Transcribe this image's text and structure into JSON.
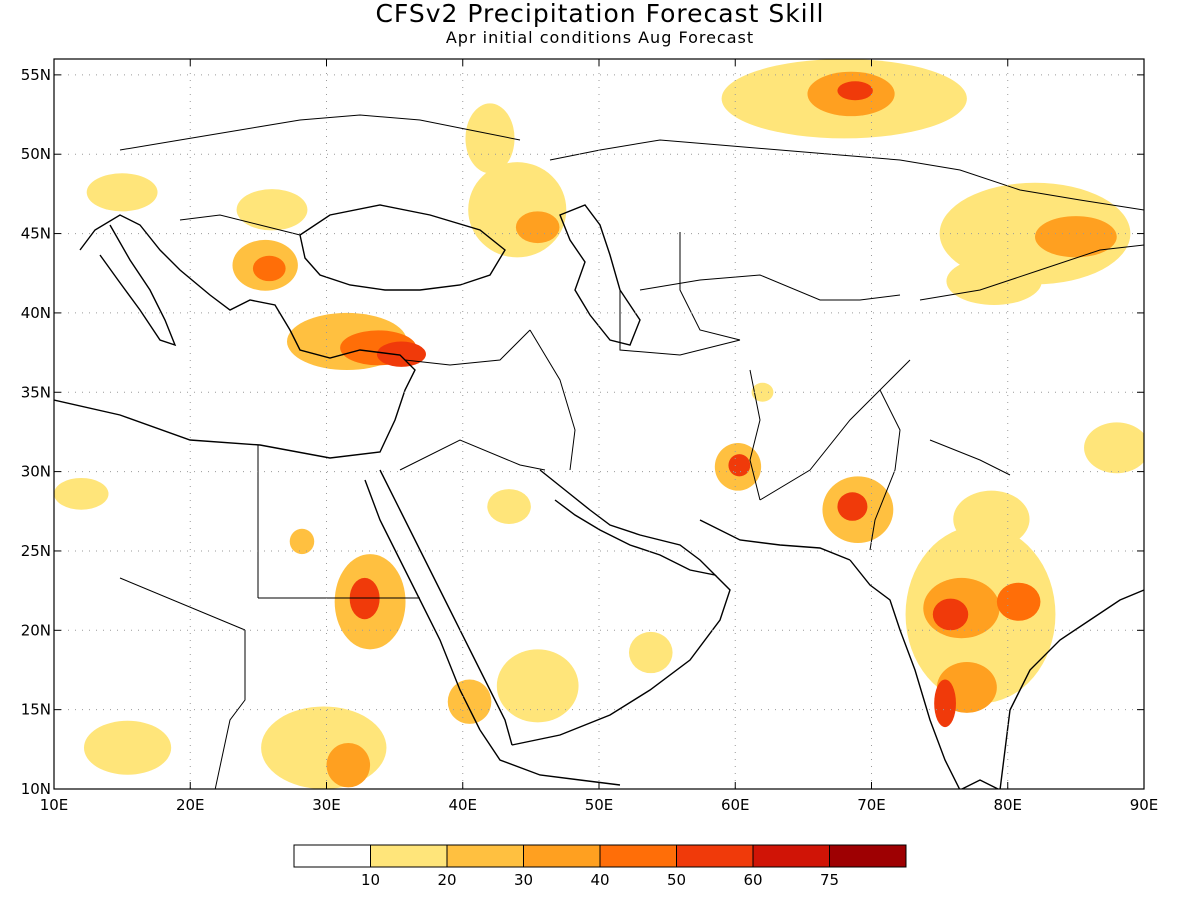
{
  "title": "CFSv2 Precipitation Forecast Skill",
  "subtitle": "Apr initial conditions   Aug Forecast",
  "map": {
    "lon_range": [
      10,
      90
    ],
    "lat_range": [
      10,
      56
    ],
    "lat_ticks": [
      {
        "value": 55,
        "label": "55N"
      },
      {
        "value": 50,
        "label": "50N"
      },
      {
        "value": 45,
        "label": "45N"
      },
      {
        "value": 40,
        "label": "40N"
      },
      {
        "value": 35,
        "label": "35N"
      },
      {
        "value": 30,
        "label": "30N"
      },
      {
        "value": 25,
        "label": "25N"
      },
      {
        "value": 20,
        "label": "20N"
      },
      {
        "value": 15,
        "label": "15N"
      },
      {
        "value": 10,
        "label": "10N"
      }
    ],
    "lon_ticks": [
      {
        "value": 10,
        "label": "10E"
      },
      {
        "value": 20,
        "label": "20E"
      },
      {
        "value": 30,
        "label": "30E"
      },
      {
        "value": 40,
        "label": "40E"
      },
      {
        "value": 50,
        "label": "50E"
      },
      {
        "value": 60,
        "label": "60E"
      },
      {
        "value": 70,
        "label": "70E"
      },
      {
        "value": 80,
        "label": "80E"
      },
      {
        "value": 90,
        "label": "90E"
      }
    ],
    "grid": "dotted",
    "skill_regions": [
      {
        "lon": 31.5,
        "lat": 38.2,
        "rx": 4.4,
        "ry": 1.8,
        "level": 2
      },
      {
        "lon": 33.8,
        "lat": 37.8,
        "rx": 2.8,
        "ry": 1.1,
        "level": 4
      },
      {
        "lon": 35.5,
        "lat": 37.4,
        "rx": 1.8,
        "ry": 0.8,
        "level": 5
      },
      {
        "lon": 25.5,
        "lat": 43.0,
        "rx": 2.4,
        "ry": 1.6,
        "level": 2
      },
      {
        "lon": 25.8,
        "lat": 42.8,
        "rx": 1.2,
        "ry": 0.8,
        "level": 4
      },
      {
        "lon": 15.0,
        "lat": 47.6,
        "rx": 2.6,
        "ry": 1.2,
        "level": 1
      },
      {
        "lon": 26.0,
        "lat": 46.5,
        "rx": 2.6,
        "ry": 1.3,
        "level": 1
      },
      {
        "lon": 44.0,
        "lat": 46.5,
        "rx": 3.6,
        "ry": 3.0,
        "level": 1
      },
      {
        "lon": 45.5,
        "lat": 45.4,
        "rx": 1.6,
        "ry": 1.0,
        "level": 3
      },
      {
        "lon": 42.0,
        "lat": 51.0,
        "rx": 1.8,
        "ry": 2.2,
        "level": 1
      },
      {
        "lon": 68.0,
        "lat": 53.5,
        "rx": 9.0,
        "ry": 2.5,
        "level": 1
      },
      {
        "lon": 68.5,
        "lat": 53.8,
        "rx": 3.2,
        "ry": 1.4,
        "level": 3
      },
      {
        "lon": 68.8,
        "lat": 54.0,
        "rx": 1.3,
        "ry": 0.6,
        "level": 5
      },
      {
        "lon": 82.0,
        "lat": 45.0,
        "rx": 7.0,
        "ry": 3.2,
        "level": 1
      },
      {
        "lon": 85.0,
        "lat": 44.8,
        "rx": 3.0,
        "ry": 1.3,
        "level": 3
      },
      {
        "lon": 79.0,
        "lat": 42.0,
        "rx": 3.5,
        "ry": 1.5,
        "level": 1
      },
      {
        "lon": 60.2,
        "lat": 30.3,
        "rx": 1.7,
        "ry": 1.5,
        "level": 2
      },
      {
        "lon": 60.3,
        "lat": 30.4,
        "rx": 0.8,
        "ry": 0.7,
        "level": 5
      },
      {
        "lon": 69.0,
        "lat": 27.6,
        "rx": 2.6,
        "ry": 2.1,
        "level": 2
      },
      {
        "lon": 68.6,
        "lat": 27.8,
        "rx": 1.1,
        "ry": 0.9,
        "level": 5
      },
      {
        "lon": 78.0,
        "lat": 21.0,
        "rx": 5.5,
        "ry": 5.6,
        "level": 1
      },
      {
        "lon": 76.6,
        "lat": 21.4,
        "rx": 2.8,
        "ry": 1.9,
        "level": 3
      },
      {
        "lon": 75.8,
        "lat": 21.0,
        "rx": 1.3,
        "ry": 1.0,
        "level": 5
      },
      {
        "lon": 80.8,
        "lat": 21.8,
        "rx": 1.6,
        "ry": 1.2,
        "level": 4
      },
      {
        "lon": 77.0,
        "lat": 16.4,
        "rx": 2.2,
        "ry": 1.6,
        "level": 3
      },
      {
        "lon": 75.4,
        "lat": 15.4,
        "rx": 0.8,
        "ry": 1.5,
        "level": 5
      },
      {
        "lon": 78.8,
        "lat": 27.0,
        "rx": 2.8,
        "ry": 1.8,
        "level": 1
      },
      {
        "lon": 33.2,
        "lat": 21.8,
        "rx": 2.6,
        "ry": 3.0,
        "level": 2
      },
      {
        "lon": 32.8,
        "lat": 22.0,
        "rx": 1.1,
        "ry": 1.3,
        "level": 5
      },
      {
        "lon": 29.8,
        "lat": 12.6,
        "rx": 4.6,
        "ry": 2.6,
        "level": 1
      },
      {
        "lon": 31.6,
        "lat": 11.5,
        "rx": 1.6,
        "ry": 1.4,
        "level": 3
      },
      {
        "lon": 15.4,
        "lat": 12.6,
        "rx": 3.2,
        "ry": 1.7,
        "level": 1
      },
      {
        "lon": 88.0,
        "lat": 31.5,
        "rx": 2.4,
        "ry": 1.6,
        "level": 1
      },
      {
        "lon": 12.0,
        "lat": 28.6,
        "rx": 2.0,
        "ry": 1.0,
        "level": 1
      },
      {
        "lon": 45.5,
        "lat": 16.5,
        "rx": 3.0,
        "ry": 2.3,
        "level": 1
      },
      {
        "lon": 40.5,
        "lat": 15.5,
        "rx": 1.6,
        "ry": 1.4,
        "level": 2
      },
      {
        "lon": 53.8,
        "lat": 18.6,
        "rx": 1.6,
        "ry": 1.3,
        "level": 1
      },
      {
        "lon": 28.2,
        "lat": 25.6,
        "rx": 0.9,
        "ry": 0.8,
        "level": 2
      },
      {
        "lon": 43.4,
        "lat": 27.8,
        "rx": 1.6,
        "ry": 1.1,
        "level": 1
      },
      {
        "lon": 62.0,
        "lat": 35.0,
        "rx": 0.8,
        "ry": 0.6,
        "level": 1
      }
    ]
  },
  "colorbar": {
    "colors": [
      "#ffffff",
      "#ffe57a",
      "#ffc040",
      "#ffa020",
      "#ff6e08",
      "#f03a0a",
      "#d01406",
      "#9e0002"
    ],
    "labels": [
      "10",
      "20",
      "30",
      "40",
      "50",
      "60",
      "75"
    ]
  }
}
